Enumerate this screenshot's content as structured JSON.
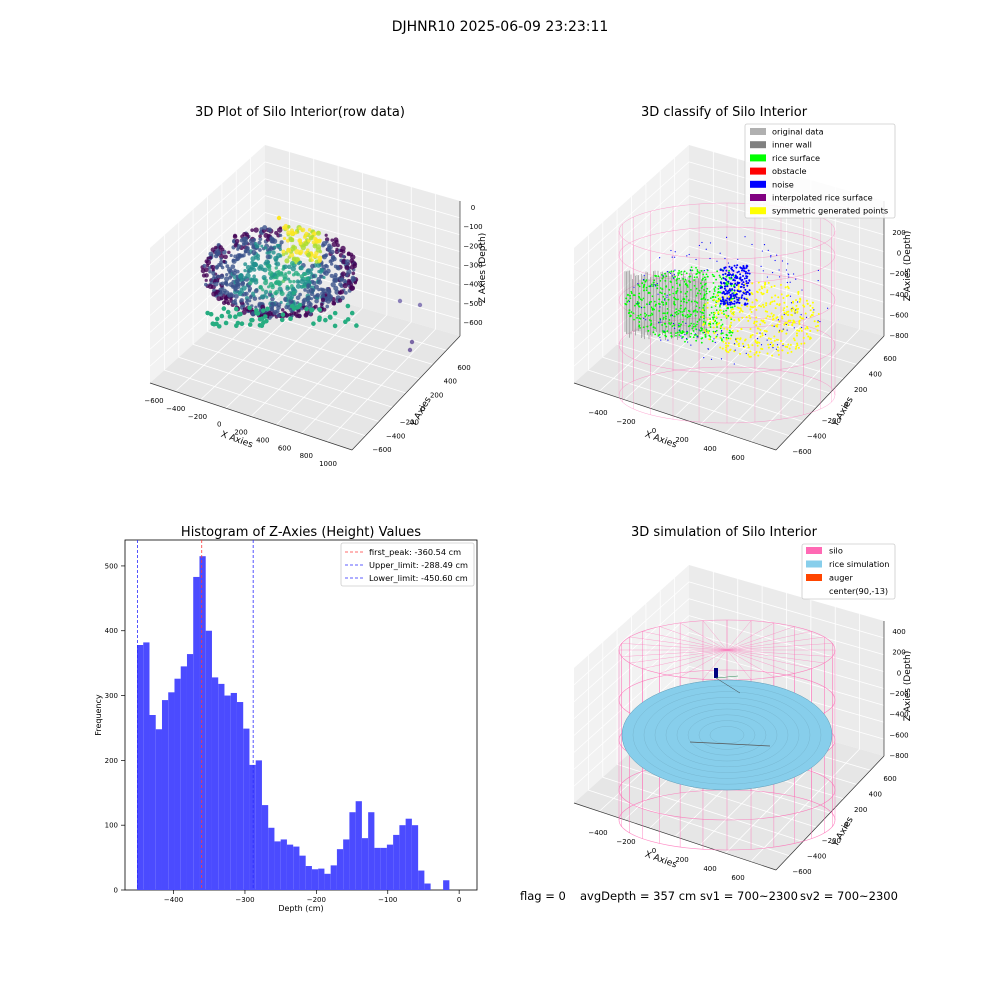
{
  "suptitle": "DJHNR10 2025-06-09 23:23:11",
  "footer": {
    "flag": "flag = 0",
    "avg_depth": "avgDepth = 357 cm",
    "sv1": "sv1 = 700~2300",
    "sv2": "sv2 = 700~2300"
  },
  "colors": {
    "hist_bar": "#4b4bff",
    "first_peak_line": "#ff3b3b",
    "limit_line": "#2a2aff",
    "rice_surface": "#00ff00",
    "noise": "#0000ff",
    "symmetric": "#ffff00",
    "silo": "#ff69b4",
    "rice_sim": "#87ceeb",
    "auger": "#ff4500"
  },
  "chart_data": [
    {
      "type": "scatter3d",
      "title": "3D Plot of Silo Interior(row data)",
      "xlabel": "X Axies",
      "ylabel": "Y Axies",
      "zlabel": "Z Axies (Depth)",
      "xticks": [
        "−600",
        "−400",
        "−200",
        "0",
        "200",
        "400",
        "600",
        "800",
        "1000"
      ],
      "yticks": [
        "−600",
        "−400",
        "−200",
        "0",
        "200",
        "400",
        "600"
      ],
      "zticks": [
        "0",
        "−100",
        "−200",
        "−300",
        "−400",
        "−500",
        "−600"
      ],
      "colormap": "viridis"
    },
    {
      "type": "scatter3d",
      "title": "3D classify of Silo Interior",
      "xlabel": "X Axies",
      "ylabel": "Y Axies",
      "zlabel": "Z Axies (Depth)",
      "xticks": [
        "−400",
        "−200",
        "0",
        "200",
        "400",
        "600"
      ],
      "yticks": [
        "−600",
        "−400",
        "−200",
        "0",
        "200",
        "400",
        "600"
      ],
      "zticks": [
        "200",
        "0",
        "−200",
        "−400",
        "−600",
        "−800"
      ],
      "legend_position": "top-right",
      "legend": [
        {
          "label": "original data",
          "color": "#b0b0b0"
        },
        {
          "label": "inner wall",
          "color": "#808080"
        },
        {
          "label": "rice surface",
          "color": "#00ff00"
        },
        {
          "label": "obstacle",
          "color": "#ff0000"
        },
        {
          "label": "noise",
          "color": "#0000ff"
        },
        {
          "label": "interpolated rice surface",
          "color": "#800080"
        },
        {
          "label": "symmetric generated points",
          "color": "#ffff00"
        }
      ]
    },
    {
      "type": "bar",
      "title": "Histogram of Z-Axies (Height) Values",
      "xlabel": "Depth (cm)",
      "ylabel": "Frequency",
      "xlim": [
        -468,
        25
      ],
      "ylim": [
        0,
        540
      ],
      "xticks": [
        -400,
        -300,
        -200,
        -100,
        0
      ],
      "xticklabels": [
        "−400",
        "−300",
        "−200",
        "−100",
        "0"
      ],
      "yticks": [
        0,
        100,
        200,
        300,
        400,
        500
      ],
      "bin_start": -451.2,
      "bin_width": 8.75,
      "values": [
        378,
        382,
        270,
        248,
        293,
        305,
        326,
        345,
        364,
        483,
        515,
        400,
        328,
        318,
        300,
        304,
        290,
        249,
        193,
        200,
        131,
        96,
        75,
        78,
        70,
        67,
        53,
        37,
        32,
        33,
        25,
        38,
        63,
        78,
        120,
        137,
        80,
        120,
        65,
        65,
        70,
        85,
        100,
        110,
        100,
        30,
        10,
        0,
        0,
        15
      ],
      "vlines": [
        {
          "label": "first_peak: -360.54 cm",
          "x": -360.54,
          "color": "#ff3b3b"
        },
        {
          "label": "Upper_limit: -288.49 cm",
          "x": -288.49,
          "color": "#2a2aff"
        },
        {
          "label": "Lower_limit: -450.60 cm",
          "x": -450.6,
          "color": "#2a2aff"
        }
      ],
      "legend_position": "top-right"
    },
    {
      "type": "surface3d",
      "title": "3D simulation of Silo Interior",
      "xlabel": "X Axies",
      "ylabel": "Y Axies",
      "zlabel": "Z Axies (Depth)",
      "xticks": [
        "−400",
        "−200",
        "0",
        "200",
        "400",
        "600"
      ],
      "yticks": [
        "−600",
        "−400",
        "−200",
        "0",
        "200",
        "400",
        "600"
      ],
      "zticks": [
        "400",
        "200",
        "0",
        "−200",
        "−400",
        "−600",
        "−800"
      ],
      "legend_position": "top-right",
      "legend": [
        {
          "label": "silo",
          "color": "#ff69b4"
        },
        {
          "label": "rice simulation",
          "color": "#87ceeb"
        },
        {
          "label": "auger",
          "color": "#ff4500"
        },
        {
          "label": "center(90,-13)",
          "color": "none"
        }
      ]
    }
  ]
}
